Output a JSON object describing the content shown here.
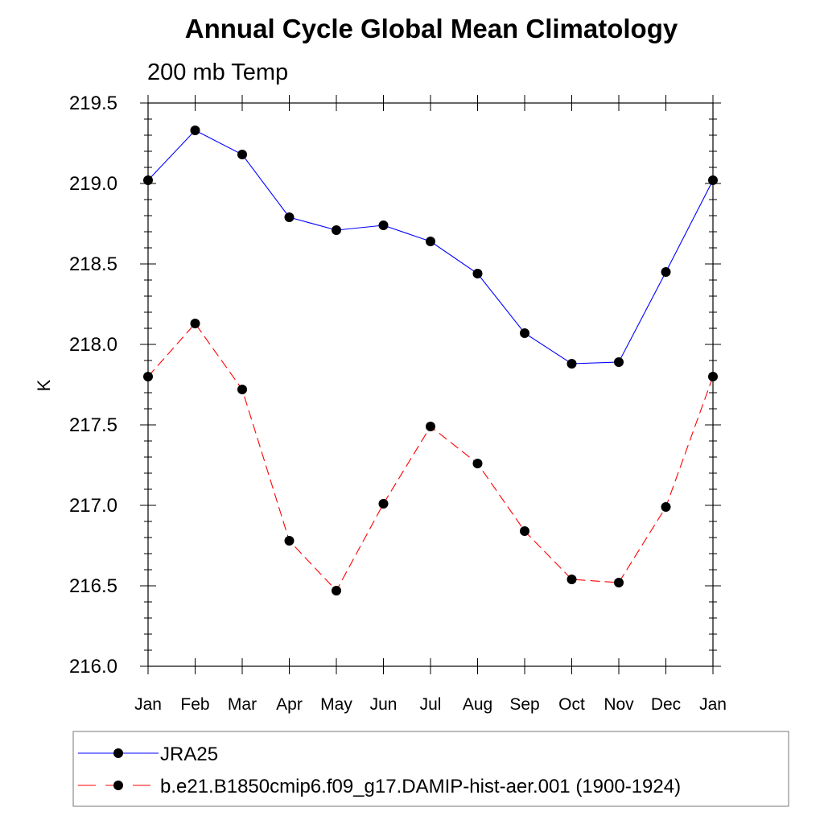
{
  "chart_data": {
    "type": "line",
    "title": "Annual Cycle Global Mean Climatology",
    "subtitle": "200 mb Temp",
    "xlabel": "",
    "ylabel": "K",
    "categories": [
      "Jan",
      "Feb",
      "Mar",
      "Apr",
      "May",
      "Jun",
      "Jul",
      "Aug",
      "Sep",
      "Oct",
      "Nov",
      "Dec",
      "Jan"
    ],
    "ylim": [
      216.0,
      219.5
    ],
    "yticks": [
      216.0,
      216.5,
      217.0,
      217.5,
      218.0,
      218.5,
      219.0,
      219.5
    ],
    "ytick_labels": [
      "216.0",
      "216.5",
      "217.0",
      "217.5",
      "218.0",
      "218.5",
      "219.0",
      "219.5"
    ],
    "grid": false,
    "legend_position": "bottom",
    "series": [
      {
        "name": "JRA25",
        "color": "#0000ff",
        "dash": "solid",
        "marker": "filled-circle",
        "values": [
          219.02,
          219.33,
          219.18,
          218.79,
          218.71,
          218.74,
          218.64,
          218.44,
          218.07,
          217.88,
          217.89,
          218.45,
          219.02
        ]
      },
      {
        "name": "b.e21.B1850cmip6.f09_g17.DAMIP-hist-aer.001 (1900-1924)",
        "color": "#ff0000",
        "dash": "dashed",
        "marker": "filled-circle",
        "values": [
          217.8,
          218.13,
          217.72,
          216.78,
          216.47,
          217.01,
          217.49,
          217.26,
          216.84,
          216.54,
          216.52,
          216.99,
          217.8
        ]
      }
    ]
  }
}
